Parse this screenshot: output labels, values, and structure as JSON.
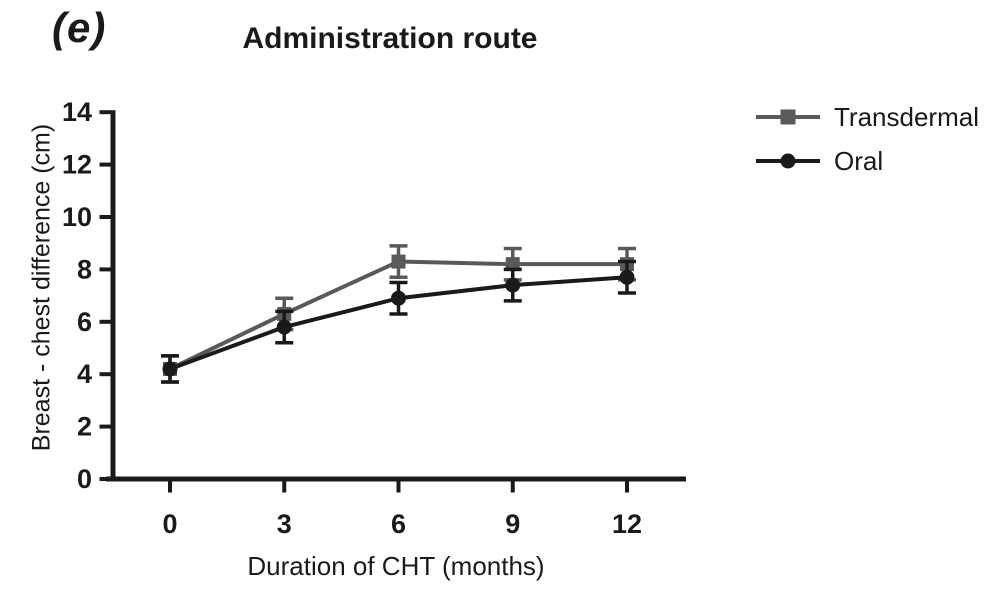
{
  "figure": {
    "panel_label": "(e)"
  },
  "chart_data": {
    "type": "line",
    "title": "Administration route",
    "xlabel": "Duration of CHT (months)",
    "ylabel": "Breast - chest difference (cm)",
    "x": [
      0,
      3,
      6,
      9,
      12
    ],
    "xticks": [
      0,
      3,
      6,
      9,
      12
    ],
    "yticks": [
      0,
      2,
      4,
      6,
      8,
      10,
      12,
      14
    ],
    "xlim": [
      -1.7,
      13.6
    ],
    "ylim": [
      0,
      14
    ],
    "grid": false,
    "error_bars": true,
    "legend_position": "right",
    "axis_color": "#1a1a1a",
    "series": [
      {
        "name": "Transdermal",
        "marker": "square",
        "color": "#595959",
        "values": [
          4.2,
          6.3,
          8.3,
          8.2,
          8.2
        ],
        "errors": [
          0.5,
          0.6,
          0.6,
          0.6,
          0.6
        ]
      },
      {
        "name": "Oral",
        "marker": "circle",
        "color": "#1a1a1a",
        "values": [
          4.2,
          5.8,
          6.9,
          7.4,
          7.7
        ],
        "errors": [
          0.5,
          0.6,
          0.6,
          0.6,
          0.6
        ]
      }
    ]
  }
}
